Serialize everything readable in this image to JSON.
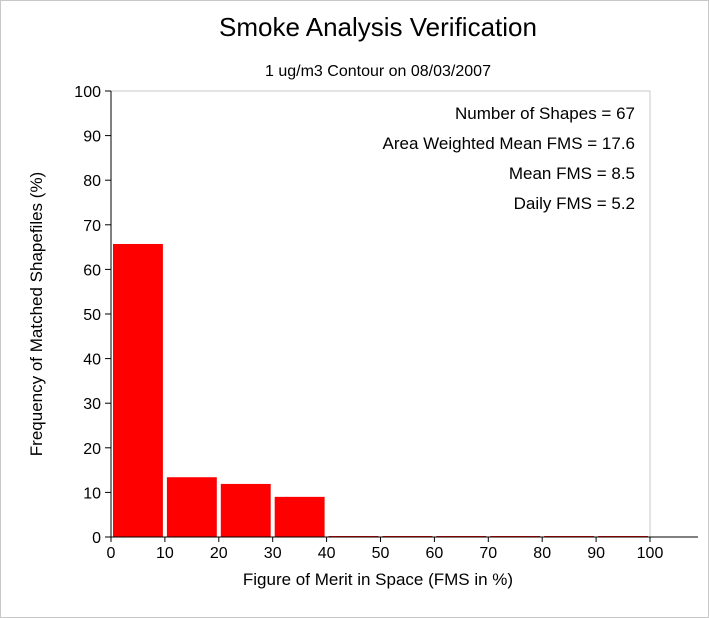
{
  "chart_data": {
    "type": "bar",
    "title": "Smoke Analysis Verification",
    "subtitle": "1 ug/m3 Contour on 08/03/2007",
    "xlabel": "Figure of Merit in Space (FMS in %)",
    "ylabel": "Frequency of Matched Shapefiles (%)",
    "xlim": [
      0,
      100
    ],
    "ylim": [
      0,
      100
    ],
    "x_ticks": [
      "0",
      "10",
      "20",
      "30",
      "40",
      "50",
      "60",
      "70",
      "80",
      "90",
      "100"
    ],
    "y_ticks": [
      "0",
      "10",
      "20",
      "30",
      "40",
      "50",
      "60",
      "70",
      "80",
      "90",
      "100"
    ],
    "bins": [
      {
        "from": 0,
        "to": 10,
        "value": 65.7
      },
      {
        "from": 10,
        "to": 20,
        "value": 13.4
      },
      {
        "from": 20,
        "to": 30,
        "value": 11.9
      },
      {
        "from": 30,
        "to": 40,
        "value": 9.0
      },
      {
        "from": 40,
        "to": 50,
        "value": 0
      },
      {
        "from": 50,
        "to": 60,
        "value": 0
      },
      {
        "from": 60,
        "to": 70,
        "value": 0
      },
      {
        "from": 70,
        "to": 80,
        "value": 0
      },
      {
        "from": 80,
        "to": 90,
        "value": 0
      },
      {
        "from": 90,
        "to": 100,
        "value": 0
      }
    ],
    "bar_color": "#ff0000",
    "grid": false,
    "annotations": [
      "Number of Shapes = 67",
      "Area Weighted Mean FMS = 17.6",
      "Mean FMS = 8.5",
      "Daily FMS = 5.2"
    ]
  }
}
